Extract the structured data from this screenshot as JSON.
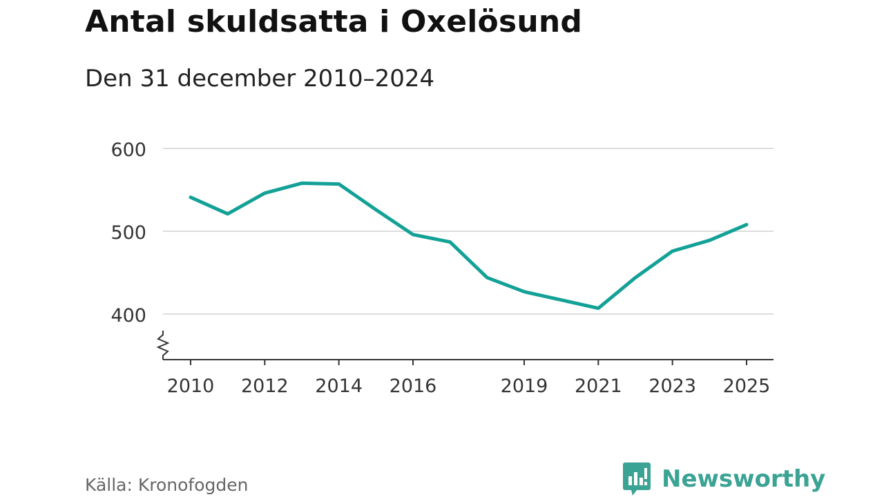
{
  "chart_data": {
    "type": "line",
    "title": "Antal skuldsatta i Oxelösund",
    "subtitle": "Den 31 december 2010–2024",
    "xlabel": "",
    "ylabel": "",
    "xlim": [
      2010,
      2025
    ],
    "ylim": [
      350,
      600
    ],
    "y_ticks": [
      400,
      500,
      600
    ],
    "x_ticks": [
      "2010",
      "2012",
      "2014",
      "2016",
      "2019",
      "2021",
      "2023",
      "2025"
    ],
    "x_tick_values": [
      2010,
      2012,
      2014,
      2016,
      2019,
      2021,
      2023,
      2025
    ],
    "grid": true,
    "axis_break": true,
    "series": [
      {
        "name": "Antal skuldsatta",
        "color": "#13a197",
        "x": [
          2010,
          2011,
          2012,
          2013,
          2014,
          2015,
          2016,
          2017,
          2018,
          2019,
          2020,
          2021,
          2022,
          2023,
          2024,
          2025
        ],
        "values": [
          541,
          521,
          546,
          558,
          557,
          526,
          496,
          487,
          444,
          427,
          417,
          407,
          444,
          476,
          489,
          508
        ]
      }
    ]
  },
  "footer": {
    "source": "Källa: Kronofogden",
    "brand": "Newsworthy",
    "brand_color": "#3aa394"
  }
}
